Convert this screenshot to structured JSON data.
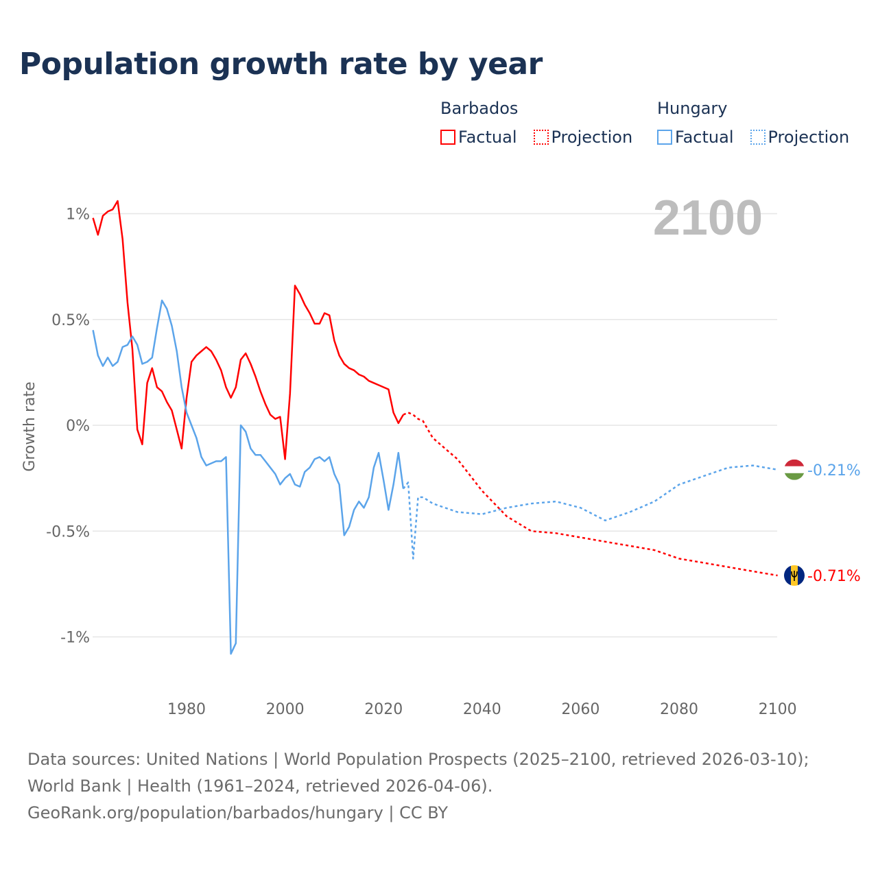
{
  "title": "Population growth rate by year",
  "legend": {
    "countries": [
      {
        "name": "Barbados",
        "color": "#ff0000",
        "factual_label": "Factual",
        "projection_label": "Projection"
      },
      {
        "name": "Hungary",
        "color": "#5ba4ea",
        "factual_label": "Factual",
        "projection_label": "Projection"
      }
    ]
  },
  "year_display": "2100",
  "footer": {
    "sources": "Data sources: United Nations | World Population Prospects (2025–2100, retrieved 2026-03-10); World Bank | Health (1961–2024, retrieved 2026-04-06).",
    "attribution": "GeoRank.org/population/barbados/hungary | CC BY"
  },
  "chart_data": {
    "type": "line",
    "title": "Population growth rate by year",
    "xlabel": "",
    "ylabel": "Growth rate",
    "xlim": [
      1961,
      2100
    ],
    "ylim": [
      -1.2,
      1.1
    ],
    "grid": true,
    "x_ticks": [
      1980,
      2000,
      2020,
      2040,
      2060,
      2080,
      2100
    ],
    "x_tick_labels": [
      "1980",
      "2000",
      "2020",
      "2040",
      "2060",
      "2080",
      "2100"
    ],
    "y_ticks": [
      1,
      0.5,
      0,
      -0.5,
      -1
    ],
    "y_tick_labels": [
      "1%",
      "0.5%",
      "0%",
      "-0.5%",
      "-1%"
    ],
    "legend_position": "top-right",
    "series": [
      {
        "name": "Barbados",
        "kind": "Factual",
        "color": "#ff0000",
        "style": "solid",
        "x": [
          1961,
          1962,
          1963,
          1964,
          1965,
          1966,
          1967,
          1968,
          1969,
          1970,
          1971,
          1972,
          1973,
          1974,
          1975,
          1976,
          1977,
          1978,
          1979,
          1980,
          1981,
          1982,
          1983,
          1984,
          1985,
          1986,
          1987,
          1988,
          1989,
          1990,
          1991,
          1992,
          1993,
          1994,
          1995,
          1996,
          1997,
          1998,
          1999,
          2000,
          2001,
          2002,
          2003,
          2004,
          2005,
          2006,
          2007,
          2008,
          2009,
          2010,
          2011,
          2012,
          2013,
          2014,
          2015,
          2016,
          2017,
          2018,
          2019,
          2020,
          2021,
          2022,
          2023,
          2024
        ],
        "y": [
          0.98,
          0.9,
          0.99,
          1.01,
          1.02,
          1.06,
          0.88,
          0.58,
          0.36,
          -0.02,
          -0.09,
          0.2,
          0.27,
          0.18,
          0.16,
          0.11,
          0.07,
          -0.02,
          -0.11,
          0.13,
          0.3,
          0.33,
          0.35,
          0.37,
          0.35,
          0.31,
          0.26,
          0.18,
          0.13,
          0.18,
          0.31,
          0.34,
          0.29,
          0.23,
          0.16,
          0.1,
          0.05,
          0.03,
          0.04,
          -0.16,
          0.15,
          0.66,
          0.62,
          0.57,
          0.53,
          0.48,
          0.48,
          0.53,
          0.52,
          0.4,
          0.33,
          0.29,
          0.27,
          0.26,
          0.24,
          0.23,
          0.21,
          0.2,
          0.19,
          0.18,
          0.17,
          0.06,
          0.01,
          0.05
        ]
      },
      {
        "name": "Barbados",
        "kind": "Projection",
        "color": "#ff0000",
        "style": "dotted",
        "x": [
          2024,
          2025,
          2026,
          2027,
          2028,
          2029,
          2030,
          2035,
          2040,
          2045,
          2050,
          2055,
          2060,
          2065,
          2070,
          2075,
          2080,
          2085,
          2090,
          2095,
          2100
        ],
        "y": [
          0.05,
          0.06,
          0.05,
          0.03,
          0.02,
          -0.02,
          -0.06,
          -0.16,
          -0.31,
          -0.43,
          -0.5,
          -0.51,
          -0.53,
          -0.55,
          -0.57,
          -0.59,
          -0.63,
          -0.65,
          -0.67,
          -0.69,
          -0.71
        ]
      },
      {
        "name": "Hungary",
        "kind": "Factual",
        "color": "#5ba4ea",
        "style": "solid",
        "x": [
          1961,
          1962,
          1963,
          1964,
          1965,
          1966,
          1967,
          1968,
          1969,
          1970,
          1971,
          1972,
          1973,
          1974,
          1975,
          1976,
          1977,
          1978,
          1979,
          1980,
          1981,
          1982,
          1983,
          1984,
          1985,
          1986,
          1987,
          1988,
          1989,
          1990,
          1991,
          1992,
          1993,
          1994,
          1995,
          1996,
          1997,
          1998,
          1999,
          2000,
          2001,
          2002,
          2003,
          2004,
          2005,
          2006,
          2007,
          2008,
          2009,
          2010,
          2011,
          2012,
          2013,
          2014,
          2015,
          2016,
          2017,
          2018,
          2019,
          2020,
          2021,
          2022,
          2023,
          2024
        ],
        "y": [
          0.45,
          0.33,
          0.28,
          0.32,
          0.28,
          0.3,
          0.37,
          0.38,
          0.42,
          0.38,
          0.29,
          0.3,
          0.32,
          0.46,
          0.59,
          0.55,
          0.47,
          0.35,
          0.18,
          0.06,
          0.0,
          -0.06,
          -0.15,
          -0.19,
          -0.18,
          -0.17,
          -0.17,
          -0.15,
          -1.08,
          -1.03,
          0.0,
          -0.03,
          -0.11,
          -0.14,
          -0.14,
          -0.17,
          -0.2,
          -0.23,
          -0.28,
          -0.25,
          -0.23,
          -0.28,
          -0.29,
          -0.22,
          -0.2,
          -0.16,
          -0.15,
          -0.17,
          -0.15,
          -0.23,
          -0.28,
          -0.52,
          -0.48,
          -0.4,
          -0.36,
          -0.39,
          -0.34,
          -0.2,
          -0.13,
          -0.26,
          -0.4,
          -0.28,
          -0.13,
          -0.3
        ]
      },
      {
        "name": "Hungary",
        "kind": "Projection",
        "color": "#5ba4ea",
        "style": "dotted",
        "x": [
          2024,
          2025,
          2026,
          2027,
          2028,
          2030,
          2035,
          2040,
          2045,
          2050,
          2055,
          2060,
          2065,
          2070,
          2075,
          2080,
          2085,
          2090,
          2095,
          2100
        ],
        "y": [
          -0.3,
          -0.27,
          -0.63,
          -0.34,
          -0.34,
          -0.37,
          -0.41,
          -0.42,
          -0.39,
          -0.37,
          -0.36,
          -0.39,
          -0.45,
          -0.41,
          -0.36,
          -0.28,
          -0.24,
          -0.2,
          -0.19,
          -0.21
        ]
      }
    ],
    "end_labels": [
      {
        "country": "Hungary",
        "value": -0.21,
        "label": "-0.21%",
        "color": "#5ba4ea"
      },
      {
        "country": "Barbados",
        "value": -0.71,
        "label": "-0.71%",
        "color": "#ff0000"
      }
    ]
  }
}
